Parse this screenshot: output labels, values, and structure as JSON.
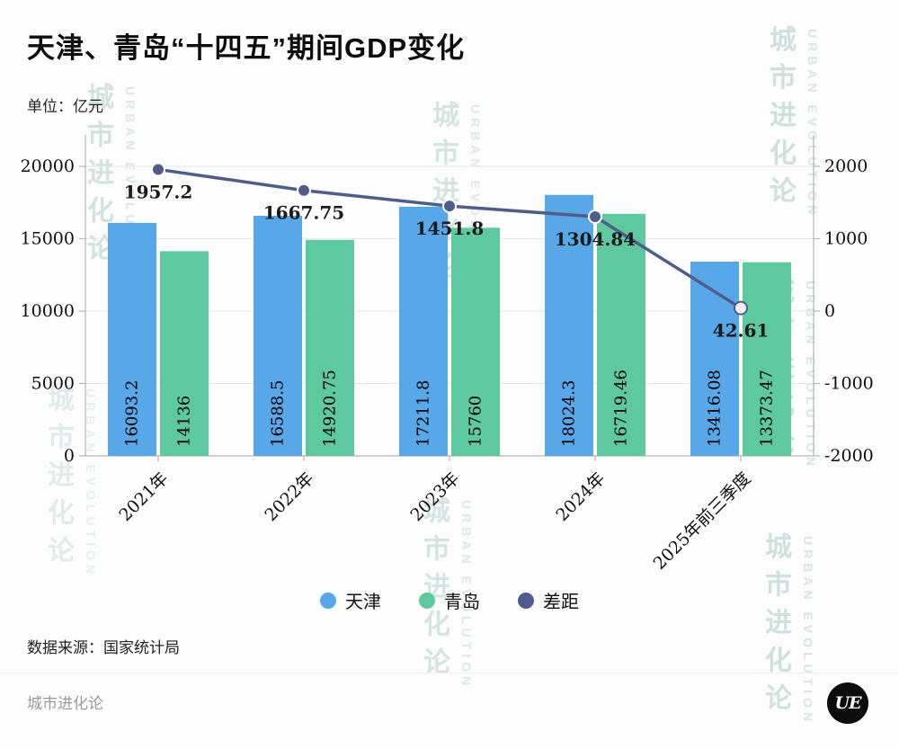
{
  "page": {
    "title": "天津、青岛“十四五”期间GDP变化",
    "unit_label": "单位：亿元",
    "source_label": "数据来源：国家统计局",
    "footer_brand": "城市进化论",
    "logo_text": "UE",
    "watermark_cn": "城市进化论",
    "watermark_en": "URBAN EVOLUTION"
  },
  "colors": {
    "tianjin_bar": "#58A7E8",
    "qingdao_bar": "#5EC8A0",
    "gap_line": "#4E5D8C",
    "axis_line": "#b5b5b5",
    "grid_line": "#e7e7e7",
    "label_text": "#0d0d0d"
  },
  "chart_data": {
    "type": "bar",
    "subtype": "grouped bars with secondary-axis line",
    "title": "天津、青岛“十四五”期间GDP变化",
    "unit": "亿元",
    "categories": [
      "2021年",
      "2022年",
      "2023年",
      "2024年",
      "2025年前三季度"
    ],
    "series": [
      {
        "name": "天津",
        "type": "bar",
        "axis": "left",
        "values": [
          16093.2,
          16588.5,
          17211.8,
          18024.3,
          13416.08
        ]
      },
      {
        "name": "青岛",
        "type": "bar",
        "axis": "left",
        "values": [
          14136,
          14920.75,
          15760,
          16719.46,
          13373.47
        ]
      },
      {
        "name": "差距",
        "type": "line",
        "axis": "right",
        "values": [
          1957.2,
          1667.75,
          1451.8,
          1304.84,
          42.61
        ]
      }
    ],
    "left_axis": {
      "min": 0,
      "max": 20000,
      "ticks": [
        0,
        5000,
        10000,
        15000,
        20000
      ]
    },
    "right_axis": {
      "min": -2000,
      "max": 2000,
      "ticks": [
        -2000,
        -1000,
        0,
        1000,
        2000
      ]
    },
    "legend": [
      "天津",
      "青岛",
      "差距"
    ],
    "legend_position": "bottom",
    "grid": true
  }
}
